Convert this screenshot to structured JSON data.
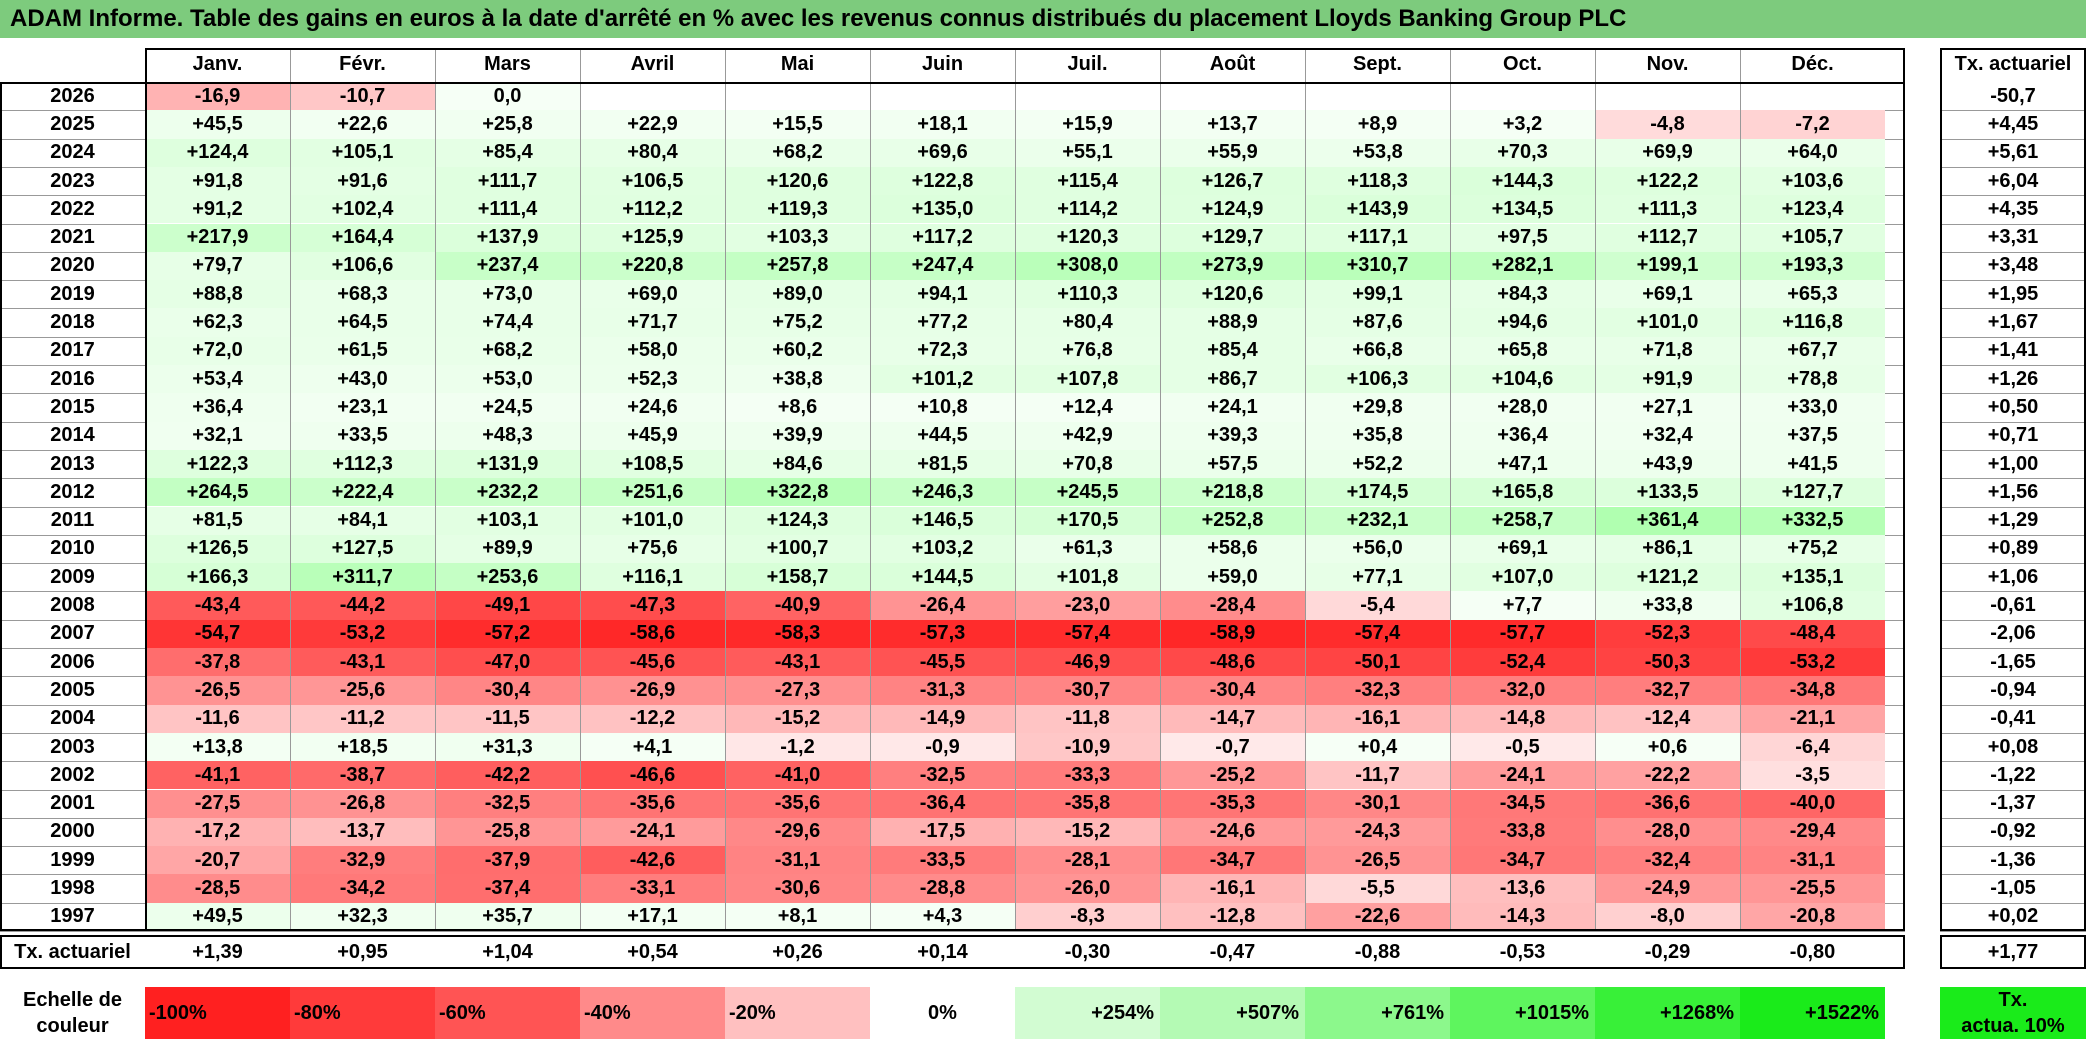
{
  "title": "ADAM Informe. Table des gains en euros à la date d'arrêté en % avec les revenus connus distribués du placement Lloyds Banking Group PLC",
  "months": [
    "Janv.",
    "Févr.",
    "Mars",
    "Avril",
    "Mai",
    "Juin",
    "Juil.",
    "Août",
    "Sept.",
    "Oct.",
    "Nov.",
    "Déc."
  ],
  "rate_header": "Tx. actuariel",
  "rows": [
    {
      "year": "2026",
      "values": [
        "-16,9",
        "-10,7",
        "0,0",
        "",
        "",
        "",
        "",
        "",
        "",
        "",
        "",
        ""
      ],
      "rate": "-50,7"
    },
    {
      "year": "2025",
      "values": [
        "+45,5",
        "+22,6",
        "+25,8",
        "+22,9",
        "+15,5",
        "+18,1",
        "+15,9",
        "+13,7",
        "+8,9",
        "+3,2",
        "-4,8",
        "-7,2"
      ],
      "rate": "+4,45"
    },
    {
      "year": "2024",
      "values": [
        "+124,4",
        "+105,1",
        "+85,4",
        "+80,4",
        "+68,2",
        "+69,6",
        "+55,1",
        "+55,9",
        "+53,8",
        "+70,3",
        "+69,9",
        "+64,0"
      ],
      "rate": "+5,61"
    },
    {
      "year": "2023",
      "values": [
        "+91,8",
        "+91,6",
        "+111,7",
        "+106,5",
        "+120,6",
        "+122,8",
        "+115,4",
        "+126,7",
        "+118,3",
        "+144,3",
        "+122,2",
        "+103,6"
      ],
      "rate": "+6,04"
    },
    {
      "year": "2022",
      "values": [
        "+91,2",
        "+102,4",
        "+111,4",
        "+112,2",
        "+119,3",
        "+135,0",
        "+114,2",
        "+124,9",
        "+143,9",
        "+134,5",
        "+111,3",
        "+123,4"
      ],
      "rate": "+4,35"
    },
    {
      "year": "2021",
      "values": [
        "+217,9",
        "+164,4",
        "+137,9",
        "+125,9",
        "+103,3",
        "+117,2",
        "+120,3",
        "+129,7",
        "+117,1",
        "+97,5",
        "+112,7",
        "+105,7"
      ],
      "rate": "+3,31"
    },
    {
      "year": "2020",
      "values": [
        "+79,7",
        "+106,6",
        "+237,4",
        "+220,8",
        "+257,8",
        "+247,4",
        "+308,0",
        "+273,9",
        "+310,7",
        "+282,1",
        "+199,1",
        "+193,3"
      ],
      "rate": "+3,48"
    },
    {
      "year": "2019",
      "values": [
        "+88,8",
        "+68,3",
        "+73,0",
        "+69,0",
        "+89,0",
        "+94,1",
        "+110,3",
        "+120,6",
        "+99,1",
        "+84,3",
        "+69,1",
        "+65,3"
      ],
      "rate": "+1,95"
    },
    {
      "year": "2018",
      "values": [
        "+62,3",
        "+64,5",
        "+74,4",
        "+71,7",
        "+75,2",
        "+77,2",
        "+80,4",
        "+88,9",
        "+87,6",
        "+94,6",
        "+101,0",
        "+116,8"
      ],
      "rate": "+1,67"
    },
    {
      "year": "2017",
      "values": [
        "+72,0",
        "+61,5",
        "+68,2",
        "+58,0",
        "+60,2",
        "+72,3",
        "+76,8",
        "+85,4",
        "+66,8",
        "+65,8",
        "+71,8",
        "+67,7"
      ],
      "rate": "+1,41"
    },
    {
      "year": "2016",
      "values": [
        "+53,4",
        "+43,0",
        "+53,0",
        "+52,3",
        "+38,8",
        "+101,2",
        "+107,8",
        "+86,7",
        "+106,3",
        "+104,6",
        "+91,9",
        "+78,8"
      ],
      "rate": "+1,26"
    },
    {
      "year": "2015",
      "values": [
        "+36,4",
        "+23,1",
        "+24,5",
        "+24,6",
        "+8,6",
        "+10,8",
        "+12,4",
        "+24,1",
        "+29,8",
        "+28,0",
        "+27,1",
        "+33,0"
      ],
      "rate": "+0,50"
    },
    {
      "year": "2014",
      "values": [
        "+32,1",
        "+33,5",
        "+48,3",
        "+45,9",
        "+39,9",
        "+44,5",
        "+42,9",
        "+39,3",
        "+35,8",
        "+36,4",
        "+32,4",
        "+37,5"
      ],
      "rate": "+0,71"
    },
    {
      "year": "2013",
      "values": [
        "+122,3",
        "+112,3",
        "+131,9",
        "+108,5",
        "+84,6",
        "+81,5",
        "+70,8",
        "+57,5",
        "+52,2",
        "+47,1",
        "+43,9",
        "+41,5"
      ],
      "rate": "+1,00"
    },
    {
      "year": "2012",
      "values": [
        "+264,5",
        "+222,4",
        "+232,2",
        "+251,6",
        "+322,8",
        "+246,3",
        "+245,5",
        "+218,8",
        "+174,5",
        "+165,8",
        "+133,5",
        "+127,7"
      ],
      "rate": "+1,56"
    },
    {
      "year": "2011",
      "values": [
        "+81,5",
        "+84,1",
        "+103,1",
        "+101,0",
        "+124,3",
        "+146,5",
        "+170,5",
        "+252,8",
        "+232,1",
        "+258,7",
        "+361,4",
        "+332,5"
      ],
      "rate": "+1,29"
    },
    {
      "year": "2010",
      "values": [
        "+126,5",
        "+127,5",
        "+89,9",
        "+75,6",
        "+100,7",
        "+103,2",
        "+61,3",
        "+58,6",
        "+56,0",
        "+69,1",
        "+86,1",
        "+75,2"
      ],
      "rate": "+0,89"
    },
    {
      "year": "2009",
      "values": [
        "+166,3",
        "+311,7",
        "+253,6",
        "+116,1",
        "+158,7",
        "+144,5",
        "+101,8",
        "+59,0",
        "+77,1",
        "+107,0",
        "+121,2",
        "+135,1"
      ],
      "rate": "+1,06"
    },
    {
      "year": "2008",
      "values": [
        "-43,4",
        "-44,2",
        "-49,1",
        "-47,3",
        "-40,9",
        "-26,4",
        "-23,0",
        "-28,4",
        "-5,4",
        "+7,7",
        "+33,8",
        "+106,8"
      ],
      "rate": "-0,61"
    },
    {
      "year": "2007",
      "values": [
        "-54,7",
        "-53,2",
        "-57,2",
        "-58,6",
        "-58,3",
        "-57,3",
        "-57,4",
        "-58,9",
        "-57,4",
        "-57,7",
        "-52,3",
        "-48,4"
      ],
      "rate": "-2,06"
    },
    {
      "year": "2006",
      "values": [
        "-37,8",
        "-43,1",
        "-47,0",
        "-45,6",
        "-43,1",
        "-45,5",
        "-46,9",
        "-48,6",
        "-50,1",
        "-52,4",
        "-50,3",
        "-53,2"
      ],
      "rate": "-1,65"
    },
    {
      "year": "2005",
      "values": [
        "-26,5",
        "-25,6",
        "-30,4",
        "-26,9",
        "-27,3",
        "-31,3",
        "-30,7",
        "-30,4",
        "-32,3",
        "-32,0",
        "-32,7",
        "-34,8"
      ],
      "rate": "-0,94"
    },
    {
      "year": "2004",
      "values": [
        "-11,6",
        "-11,2",
        "-11,5",
        "-12,2",
        "-15,2",
        "-14,9",
        "-11,8",
        "-14,7",
        "-16,1",
        "-14,8",
        "-12,4",
        "-21,1"
      ],
      "rate": "-0,41"
    },
    {
      "year": "2003",
      "values": [
        "+13,8",
        "+18,5",
        "+31,3",
        "+4,1",
        "-1,2",
        "-0,9",
        "-10,9",
        "-0,7",
        "+0,4",
        "-0,5",
        "+0,6",
        "-6,4"
      ],
      "rate": "+0,08"
    },
    {
      "year": "2002",
      "values": [
        "-41,1",
        "-38,7",
        "-42,2",
        "-46,6",
        "-41,0",
        "-32,5",
        "-33,3",
        "-25,2",
        "-11,7",
        "-24,1",
        "-22,2",
        "-3,5"
      ],
      "rate": "-1,22"
    },
    {
      "year": "2001",
      "values": [
        "-27,5",
        "-26,8",
        "-32,5",
        "-35,6",
        "-35,6",
        "-36,4",
        "-35,8",
        "-35,3",
        "-30,1",
        "-34,5",
        "-36,6",
        "-40,0"
      ],
      "rate": "-1,37"
    },
    {
      "year": "2000",
      "values": [
        "-17,2",
        "-13,7",
        "-25,8",
        "-24,1",
        "-29,6",
        "-17,5",
        "-15,2",
        "-24,6",
        "-24,3",
        "-33,8",
        "-28,0",
        "-29,4"
      ],
      "rate": "-0,92"
    },
    {
      "year": "1999",
      "values": [
        "-20,7",
        "-32,9",
        "-37,9",
        "-42,6",
        "-31,1",
        "-33,5",
        "-28,1",
        "-34,7",
        "-26,5",
        "-34,7",
        "-32,4",
        "-31,1"
      ],
      "rate": "-1,36"
    },
    {
      "year": "1998",
      "values": [
        "-28,5",
        "-34,2",
        "-37,4",
        "-33,1",
        "-30,6",
        "-28,8",
        "-26,0",
        "-16,1",
        "-5,5",
        "-13,6",
        "-24,9",
        "-25,5"
      ],
      "rate": "-1,05"
    },
    {
      "year": "1997",
      "values": [
        "+49,5",
        "+32,3",
        "+35,7",
        "+17,1",
        "+8,1",
        "+4,3",
        "-8,3",
        "-12,8",
        "-22,6",
        "-14,3",
        "-8,0",
        "-20,8"
      ],
      "rate": "+0,02"
    }
  ],
  "footer": {
    "label": "Tx. actuariel",
    "values": [
      "+1,39",
      "+0,95",
      "+1,04",
      "+0,54",
      "+0,26",
      "+0,14",
      "-0,30",
      "-0,47",
      "-0,88",
      "-0,53",
      "-0,29",
      "-0,80"
    ],
    "total": "+1,77"
  },
  "scale": {
    "label_line1": "Echelle de",
    "label_line2": "couleur",
    "items": [
      {
        "text": "-100%",
        "color": "#ff2020"
      },
      {
        "text": "-80%",
        "color": "#ff3a3a"
      },
      {
        "text": "-60%",
        "color": "#ff5454"
      },
      {
        "text": "-40%",
        "color": "#ff8a8a"
      },
      {
        "text": "-20%",
        "color": "#ffc0c0"
      },
      {
        "text": "0%",
        "color": "#ffffff"
      },
      {
        "text": "+254%",
        "color": "#d2fcd2"
      },
      {
        "text": "+507%",
        "color": "#b4fab4"
      },
      {
        "text": "+761%",
        "color": "#8cf88c"
      },
      {
        "text": "+1015%",
        "color": "#5ef55e"
      },
      {
        "text": "+1268%",
        "color": "#38f038"
      },
      {
        "text": "+1522%",
        "color": "#1aeb1a"
      }
    ],
    "rate_line1": "Tx.",
    "rate_line2": "actua. 10%",
    "rate_color": "#1aeb1a"
  },
  "colors": {
    "title_bg": "#7dcb7d",
    "neg_max": "#ff2020",
    "pos_light": "#eafdea"
  }
}
